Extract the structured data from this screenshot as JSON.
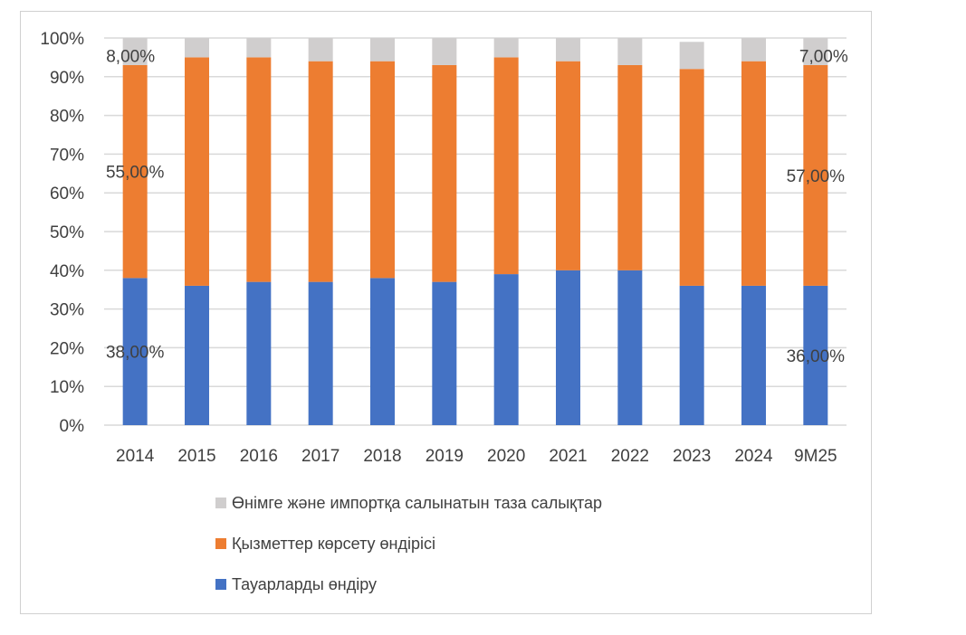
{
  "chart_data": {
    "type": "bar",
    "stacked": true,
    "categories": [
      "2014",
      "2015",
      "2016",
      "2017",
      "2018",
      "2019",
      "2020",
      "2021",
      "2022",
      "2023",
      "2024",
      "9M25"
    ],
    "series": [
      {
        "name": "Тауарларды өндіру",
        "color": "#4472C4",
        "values": [
          38,
          36,
          37,
          37,
          38,
          37,
          39,
          40,
          40,
          36,
          36,
          36
        ]
      },
      {
        "name": "Қызметтер көрсету өндірісі",
        "color": "#ED7D31",
        "values": [
          55,
          59,
          58,
          57,
          56,
          56,
          56,
          54,
          53,
          56,
          58,
          57
        ]
      },
      {
        "name": "Өнімге және импортқа салынатын таза салықтар",
        "color": "#D0CECE",
        "values": [
          8,
          5,
          5,
          6,
          6,
          7,
          5,
          6,
          7,
          7,
          6,
          7
        ]
      }
    ],
    "data_labels": [
      {
        "category": "2014",
        "series": 0,
        "text": "38,00%"
      },
      {
        "category": "2014",
        "series": 1,
        "text": "55,00%"
      },
      {
        "category": "2014",
        "series": 2,
        "text": "8,00%"
      },
      {
        "category": "9M25",
        "series": 0,
        "text": "36,00%"
      },
      {
        "category": "9M25",
        "series": 1,
        "text": "57,00%"
      },
      {
        "category": "9M25",
        "series": 2,
        "text": "7,00%"
      }
    ],
    "y_ticks": [
      "0%",
      "10%",
      "20%",
      "30%",
      "40%",
      "50%",
      "60%",
      "70%",
      "80%",
      "90%",
      "100%"
    ],
    "ylim": [
      0,
      100
    ],
    "grid": true,
    "legend_placement": "bottom",
    "legend_order": [
      2,
      1,
      0
    ]
  }
}
